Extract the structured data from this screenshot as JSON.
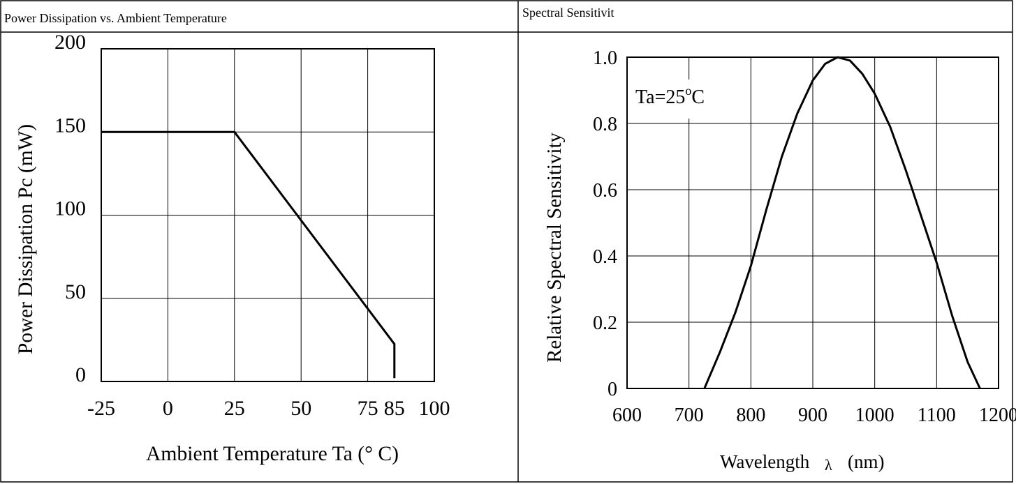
{
  "panels": [
    {
      "header": "Power Dissipation vs. Ambient Temperature"
    },
    {
      "header": "Spectral Sensitivit"
    }
  ],
  "chart_data": [
    {
      "type": "line",
      "xlabel": "Ambient Temperature Ta (° C)",
      "ylabel": "Power Dissipation Pc (mW)",
      "xlim": [
        -25,
        100
      ],
      "ylim": [
        0,
        200
      ],
      "x_gridlines": [
        0,
        25,
        50,
        75
      ],
      "y_gridlines": [
        50,
        100,
        150
      ],
      "xticks": [
        {
          "value": -25,
          "label": "-25"
        },
        {
          "value": 0,
          "label": "0"
        },
        {
          "value": 25,
          "label": "25"
        },
        {
          "value": 50,
          "label": "50"
        },
        {
          "value": 75,
          "label": "75"
        },
        {
          "value": 85,
          "label": "85"
        },
        {
          "value": 100,
          "label": "100"
        }
      ],
      "yticks": [
        {
          "value": 0,
          "label": "0"
        },
        {
          "value": 50,
          "label": "50"
        },
        {
          "value": 100,
          "label": "100"
        },
        {
          "value": 150,
          "label": "150"
        },
        {
          "value": 200,
          "label": "200"
        }
      ],
      "grid": true,
      "series": [
        {
          "x": [
            -25,
            25,
            85,
            85
          ],
          "y": [
            150,
            150,
            22.5,
            2
          ]
        }
      ]
    },
    {
      "type": "line",
      "xlabel": "Wavelength",
      "xlabel_symbol": "λ",
      "xlabel_unit": "(nm)",
      "ylabel": "Relative Spectral Sensitivity",
      "annotation": {
        "base": "Ta=25",
        "sup": "o",
        "tail": "C"
      },
      "xlim": [
        600,
        1200
      ],
      "ylim": [
        0,
        1.0
      ],
      "x_gridlines": [
        700,
        800,
        900,
        1000,
        1100
      ],
      "y_gridlines": [
        0.2,
        0.4,
        0.6,
        0.8
      ],
      "xticks": [
        {
          "value": 600,
          "label": "600"
        },
        {
          "value": 700,
          "label": "700"
        },
        {
          "value": 800,
          "label": "800"
        },
        {
          "value": 900,
          "label": "900"
        },
        {
          "value": 1000,
          "label": "1000"
        },
        {
          "value": 1100,
          "label": "1100"
        },
        {
          "value": 1200,
          "label": "1200"
        }
      ],
      "yticks": [
        {
          "value": 0,
          "label": "0"
        },
        {
          "value": 0.2,
          "label": "0.2"
        },
        {
          "value": 0.4,
          "label": "0.4"
        },
        {
          "value": 0.6,
          "label": "0.6"
        },
        {
          "value": 0.8,
          "label": "0.8"
        },
        {
          "value": 1.0,
          "label": "1.0"
        }
      ],
      "grid": true,
      "series": [
        {
          "x": [
            725,
            750,
            775,
            800,
            825,
            850,
            875,
            900,
            920,
            940,
            960,
            980,
            1000,
            1025,
            1050,
            1075,
            1100,
            1125,
            1150,
            1170
          ],
          "y": [
            0,
            0.11,
            0.23,
            0.37,
            0.54,
            0.7,
            0.83,
            0.93,
            0.98,
            1.0,
            0.99,
            0.95,
            0.89,
            0.79,
            0.66,
            0.52,
            0.38,
            0.22,
            0.08,
            0
          ]
        }
      ]
    }
  ]
}
